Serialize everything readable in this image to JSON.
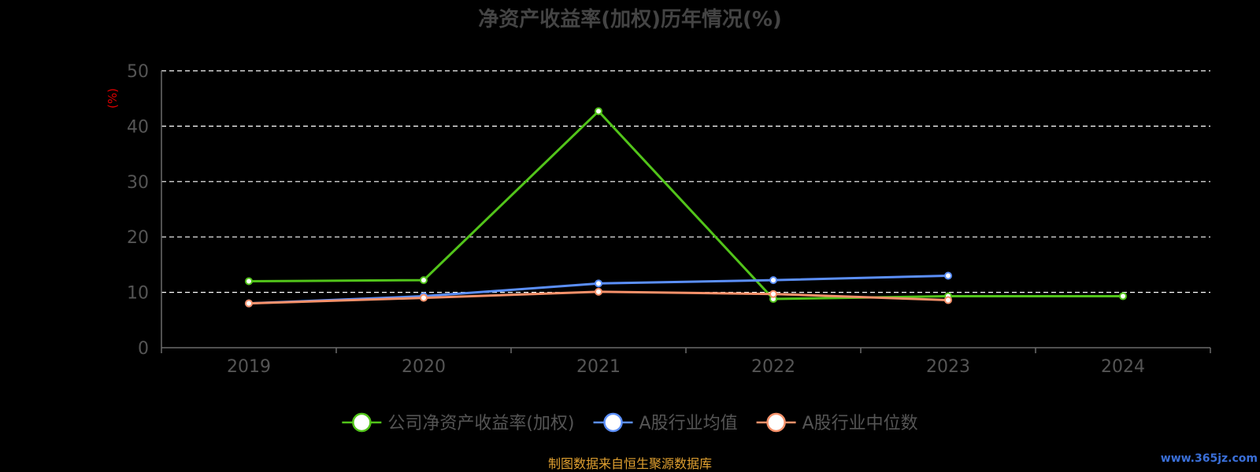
{
  "chart_data": {
    "type": "line",
    "title": "净资产收益率(加权)历年情况(%)",
    "ylabel": "(%)",
    "xlabel": "",
    "categories": [
      "2019",
      "2020",
      "2021",
      "2022",
      "2023",
      "2024"
    ],
    "ylim": [
      0,
      50
    ],
    "yticks": [
      0,
      10,
      20,
      30,
      40,
      50
    ],
    "grid": true,
    "legend_position": "bottom",
    "series": [
      {
        "name": "公司净资产收益率(加权)",
        "color": "#52c41a",
        "values": [
          12.0,
          12.2,
          42.7,
          8.8,
          9.3,
          9.3
        ]
      },
      {
        "name": "A股行业均值",
        "color": "#5b8ff9",
        "values": [
          8.0,
          9.3,
          11.6,
          12.2,
          13.0,
          null
        ]
      },
      {
        "name": "A股行业中位数",
        "color": "#f6916a",
        "values": [
          8.0,
          9.0,
          10.1,
          9.7,
          8.6,
          null
        ]
      }
    ]
  },
  "source": "制图数据来自恒生聚源数据库",
  "watermark": "www.365jz.com"
}
